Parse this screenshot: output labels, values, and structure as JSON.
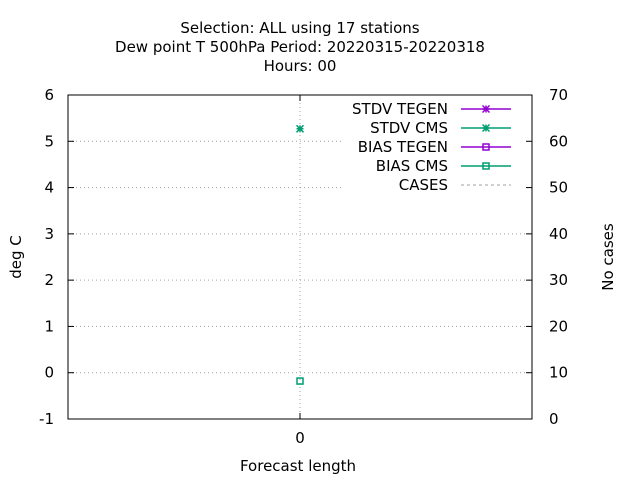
{
  "chart_data": {
    "type": "scatter",
    "title_lines": [
      "Selection: ALL using    17 stations",
      "Dew point T 500hPa   Period: 20220315-20220318",
      "Hours:  00"
    ],
    "xlabel": "Forecast length",
    "ylabel": "deg C",
    "y2label": "No cases",
    "x_ticks": [
      "0"
    ],
    "xlim": [
      -1,
      1
    ],
    "ylim": [
      -1,
      6
    ],
    "y_ticks": [
      -1,
      0,
      1,
      2,
      3,
      4,
      5,
      6
    ],
    "y2lim": [
      0,
      70
    ],
    "y2_ticks": [
      0,
      10,
      20,
      30,
      40,
      50,
      60,
      70
    ],
    "grid": true,
    "legend_position": "top-right",
    "series": [
      {
        "name": "STDV TEGEN",
        "color": "#9400d3",
        "marker": "star",
        "x": [],
        "y": []
      },
      {
        "name": "STDV CMS",
        "color": "#009e73",
        "marker": "star",
        "x": [
          0
        ],
        "y": [
          5.27
        ]
      },
      {
        "name": "BIAS TEGEN",
        "color": "#9400d3",
        "marker": "square",
        "x": [],
        "y": []
      },
      {
        "name": "BIAS CMS",
        "color": "#009e73",
        "marker": "square",
        "x": [
          0
        ],
        "y": [
          -0.18
        ]
      },
      {
        "name": "CASES",
        "color": "#a0a0a0",
        "marker": "none",
        "dashed": true,
        "x": [],
        "y": []
      }
    ]
  }
}
